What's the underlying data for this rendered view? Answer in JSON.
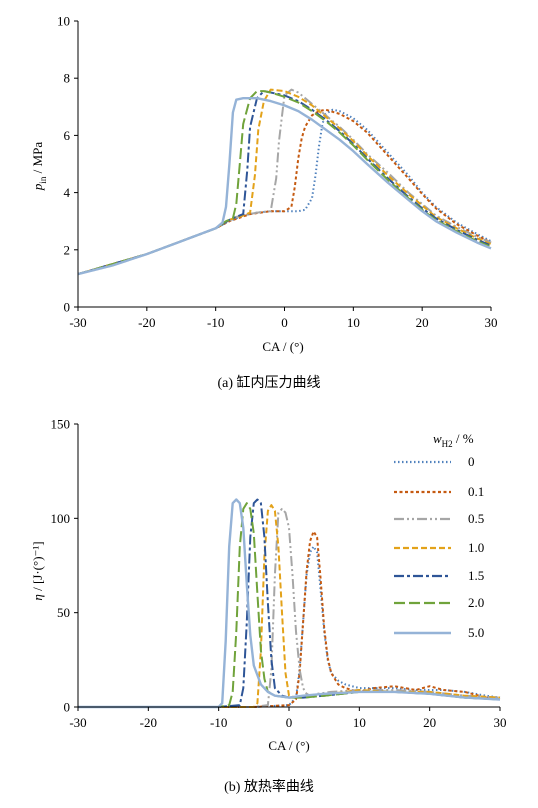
{
  "chart_data": [
    {
      "type": "line",
      "xlabel": "CA / (°)",
      "ylabel": {
        "main": "p",
        "sub": "in",
        "unit": " / MPa"
      },
      "xlim": [
        -30,
        30
      ],
      "ylim": [
        0,
        10
      ],
      "xticks": [
        "-30",
        "-20",
        "-10",
        "0",
        "10",
        "20",
        "30"
      ],
      "yticks": [
        "0",
        "2",
        "4",
        "6",
        "8",
        "10"
      ],
      "caption": "(a) 缸内压力曲线",
      "grid": false,
      "series": [
        {
          "wh2": "0",
          "color": "#4f81bd",
          "dash": "1.5 2.5",
          "x": [
            -30,
            -25,
            -20,
            -15,
            -10,
            -8,
            -6,
            -4,
            -2,
            0,
            2,
            3,
            4,
            4.5,
            5,
            5.5,
            6,
            7,
            8,
            10,
            12,
            15,
            18,
            20,
            22,
            25,
            28,
            30
          ],
          "y": [
            1.15,
            1.45,
            1.85,
            2.3,
            2.75,
            3.0,
            3.2,
            3.3,
            3.35,
            3.35,
            3.35,
            3.4,
            3.8,
            4.6,
            5.6,
            6.4,
            6.75,
            6.9,
            6.85,
            6.6,
            6.2,
            5.4,
            4.6,
            4.0,
            3.5,
            2.95,
            2.55,
            2.3
          ]
        },
        {
          "wh2": "0.1",
          "color": "#c55a11",
          "dash": "3 2.5",
          "x": [
            -30,
            -20,
            -10,
            -8,
            -5,
            -2,
            0,
            1,
            1.5,
            2,
            2.5,
            3,
            4,
            5,
            6,
            8,
            10,
            12,
            15,
            18,
            20,
            22,
            25,
            28,
            30
          ],
          "y": [
            1.15,
            1.85,
            2.75,
            3.0,
            3.25,
            3.35,
            3.35,
            3.5,
            4.2,
            5.2,
            5.9,
            6.3,
            6.7,
            6.85,
            6.9,
            6.75,
            6.5,
            6.1,
            5.3,
            4.5,
            3.95,
            3.45,
            2.9,
            2.5,
            2.25
          ]
        },
        {
          "wh2": "0.5",
          "color": "#a6a6a6",
          "dash": "10 3 2 3 2 3",
          "x": [
            -30,
            -20,
            -10,
            -7,
            -4,
            -2,
            -1.2,
            -0.8,
            -0.3,
            0,
            1,
            2,
            4,
            6,
            8,
            10,
            12,
            15,
            18,
            20,
            22,
            25,
            28,
            30
          ],
          "y": [
            1.15,
            1.85,
            2.75,
            3.15,
            3.3,
            3.35,
            4.5,
            5.8,
            6.8,
            7.4,
            7.6,
            7.5,
            7.1,
            6.7,
            6.3,
            5.85,
            5.35,
            4.7,
            4.0,
            3.6,
            3.2,
            2.8,
            2.45,
            2.25
          ]
        },
        {
          "wh2": "1.0",
          "color": "#e3a21a",
          "dash": "6 3",
          "x": [
            -30,
            -20,
            -10,
            -8,
            -6,
            -5,
            -4.3,
            -3.8,
            -3,
            -2,
            0,
            2,
            4,
            6,
            8,
            10,
            12,
            15,
            18,
            20,
            22,
            25,
            28,
            30
          ],
          "y": [
            1.15,
            1.85,
            2.75,
            3.05,
            3.2,
            3.3,
            4.6,
            6.2,
            7.2,
            7.6,
            7.55,
            7.35,
            7.05,
            6.65,
            6.25,
            5.8,
            5.3,
            4.6,
            3.95,
            3.55,
            3.15,
            2.75,
            2.4,
            2.2
          ]
        },
        {
          "wh2": "1.5",
          "color": "#2e5597",
          "dash": "10 3 3 3",
          "x": [
            -30,
            -20,
            -10,
            -8,
            -7,
            -6,
            -5.4,
            -5,
            -4,
            -3,
            -2,
            0,
            2,
            4,
            6,
            8,
            10,
            12,
            15,
            18,
            20,
            22,
            25,
            28,
            30
          ],
          "y": [
            1.15,
            1.85,
            2.75,
            3.05,
            3.15,
            3.25,
            4.8,
            6.3,
            7.3,
            7.55,
            7.5,
            7.4,
            7.2,
            6.9,
            6.55,
            6.15,
            5.7,
            5.2,
            4.5,
            3.85,
            3.45,
            3.1,
            2.7,
            2.35,
            2.15
          ]
        },
        {
          "wh2": "2.0",
          "color": "#70a33b",
          "dash": "11 4",
          "x": [
            -30,
            -20,
            -10,
            -8.5,
            -7.5,
            -7,
            -6.5,
            -6,
            -5,
            -4,
            -3,
            -2,
            0,
            2,
            4,
            6,
            8,
            10,
            12,
            15,
            18,
            20,
            22,
            25,
            28,
            30
          ],
          "y": [
            1.15,
            1.85,
            2.75,
            3.0,
            3.1,
            3.6,
            5.0,
            6.4,
            7.3,
            7.55,
            7.55,
            7.5,
            7.35,
            7.15,
            6.85,
            6.5,
            6.1,
            5.65,
            5.15,
            4.45,
            3.8,
            3.4,
            3.05,
            2.65,
            2.3,
            2.1
          ]
        },
        {
          "wh2": "5.0",
          "color": "#95b3d7",
          "dash": "",
          "x": [
            -30,
            -25,
            -20,
            -15,
            -10,
            -9,
            -8.5,
            -8,
            -7.5,
            -7,
            -6,
            -4,
            -2,
            0,
            2,
            4,
            6,
            8,
            10,
            12,
            15,
            18,
            20,
            22,
            25,
            28,
            30
          ],
          "y": [
            1.15,
            1.45,
            1.85,
            2.3,
            2.75,
            2.95,
            3.5,
            5.0,
            6.8,
            7.25,
            7.3,
            7.3,
            7.2,
            7.05,
            6.85,
            6.55,
            6.2,
            5.85,
            5.45,
            5.0,
            4.35,
            3.75,
            3.35,
            3.0,
            2.6,
            2.25,
            2.05
          ]
        }
      ]
    },
    {
      "type": "line",
      "xlabel": "CA / (°)",
      "ylabel": {
        "main": "η",
        "unit": " / [J·(°)⁻¹]"
      },
      "xlim": [
        -30,
        30
      ],
      "ylim": [
        0,
        150
      ],
      "xticks": [
        "-30",
        "-20",
        "-10",
        "0",
        "10",
        "20",
        "30"
      ],
      "yticks": [
        "0",
        "50",
        "100",
        "150"
      ],
      "caption": "(b) 放热率曲线",
      "grid": false,
      "legend": {
        "title_main": "w",
        "title_sub": "H2",
        "title_unit": " / %",
        "position": "right"
      },
      "series": [
        {
          "wh2": "0",
          "color": "#4f81bd",
          "dash": "1.5 2.5",
          "x": [
            -30,
            -20,
            -10,
            -5,
            0,
            1,
            1.5,
            2,
            2.5,
            3,
            3.5,
            4,
            4.5,
            5,
            5.5,
            6,
            7,
            8,
            10,
            12,
            15,
            18,
            20,
            22,
            25,
            28,
            30
          ],
          "y": [
            0,
            0,
            0,
            0,
            1,
            5,
            20,
            45,
            70,
            82,
            85,
            82,
            62,
            40,
            25,
            18,
            14,
            12,
            10,
            10,
            10,
            9,
            9,
            9,
            8,
            6,
            5
          ]
        },
        {
          "wh2": "0.1",
          "color": "#c55a11",
          "dash": "3 2.5",
          "x": [
            -30,
            -20,
            -10,
            -5,
            0,
            1,
            1.5,
            2,
            2.5,
            3,
            3.5,
            4,
            4.5,
            5,
            5.5,
            6,
            7,
            8,
            10,
            12,
            15,
            18,
            20,
            22,
            25,
            28,
            30
          ],
          "y": [
            0,
            0,
            0,
            0,
            1,
            4,
            18,
            45,
            72,
            88,
            93,
            90,
            68,
            42,
            26,
            18,
            12,
            10,
            8,
            10,
            11,
            9,
            11,
            9,
            8,
            5,
            4
          ]
        },
        {
          "wh2": "0.5",
          "color": "#a6a6a6",
          "dash": "10 3 2 3 2 3",
          "x": [
            -30,
            -20,
            -10,
            -5,
            -3,
            -2.5,
            -2,
            -1.5,
            -1,
            -0.5,
            0,
            0.5,
            1,
            1.5,
            2,
            2.5,
            3,
            4,
            6,
            10,
            15,
            20,
            25,
            30
          ],
          "y": [
            0,
            0,
            0,
            0,
            1,
            20,
            70,
            103,
            105,
            103,
            95,
            70,
            40,
            20,
            10,
            7,
            6,
            7,
            8,
            9,
            9,
            8,
            6,
            5
          ]
        },
        {
          "wh2": "1.0",
          "color": "#e3a21a",
          "dash": "6 3",
          "x": [
            -30,
            -20,
            -10,
            -5,
            -4.5,
            -4,
            -3.5,
            -3,
            -2.5,
            -2,
            -1.5,
            -1,
            -0.5,
            0,
            1,
            3,
            6,
            10,
            15,
            20,
            25,
            30
          ],
          "y": [
            0,
            0,
            0,
            0,
            2,
            30,
            80,
            104,
            107,
            104,
            85,
            50,
            18,
            6,
            5,
            6,
            7,
            9,
            8,
            8,
            6,
            5
          ]
        },
        {
          "wh2": "1.5",
          "color": "#2e5597",
          "dash": "10 3 3 3",
          "x": [
            -30,
            -20,
            -10,
            -7,
            -6.5,
            -6,
            -5.5,
            -5,
            -4.5,
            -4,
            -3.5,
            -3,
            -2.5,
            -2,
            -1,
            0,
            2,
            5,
            10,
            15,
            20,
            25,
            30
          ],
          "y": [
            0,
            0,
            0,
            1,
            10,
            45,
            90,
            108,
            110,
            108,
            90,
            55,
            25,
            10,
            6,
            5,
            5,
            6,
            8,
            8,
            7,
            5,
            4
          ]
        },
        {
          "wh2": "2.0",
          "color": "#70a33b",
          "dash": "11 4",
          "x": [
            -30,
            -20,
            -10,
            -8.5,
            -8,
            -7.5,
            -7,
            -6.5,
            -6,
            -5.5,
            -5,
            -4.5,
            -4,
            -3.5,
            -3,
            -2,
            0,
            2,
            5,
            10,
            15,
            20,
            25,
            30
          ],
          "y": [
            0,
            0,
            0,
            1,
            8,
            40,
            85,
            105,
            108,
            105,
            92,
            60,
            30,
            15,
            8,
            6,
            5,
            5,
            6,
            8,
            8,
            7,
            5,
            4
          ]
        },
        {
          "wh2": "5.0",
          "color": "#95b3d7",
          "dash": "",
          "x": [
            -30,
            -25,
            -20,
            -15,
            -10,
            -9.5,
            -9,
            -8.5,
            -8,
            -7.5,
            -7,
            -6.5,
            -6,
            -5.5,
            -5,
            -4,
            -3,
            -2,
            0,
            2,
            5,
            10,
            15,
            20,
            25,
            30
          ],
          "y": [
            0,
            0,
            0,
            0,
            0,
            2,
            35,
            85,
            108,
            110,
            108,
            95,
            65,
            38,
            22,
            12,
            8,
            6,
            5,
            6,
            7,
            8,
            8,
            7,
            5,
            4
          ]
        }
      ]
    }
  ]
}
